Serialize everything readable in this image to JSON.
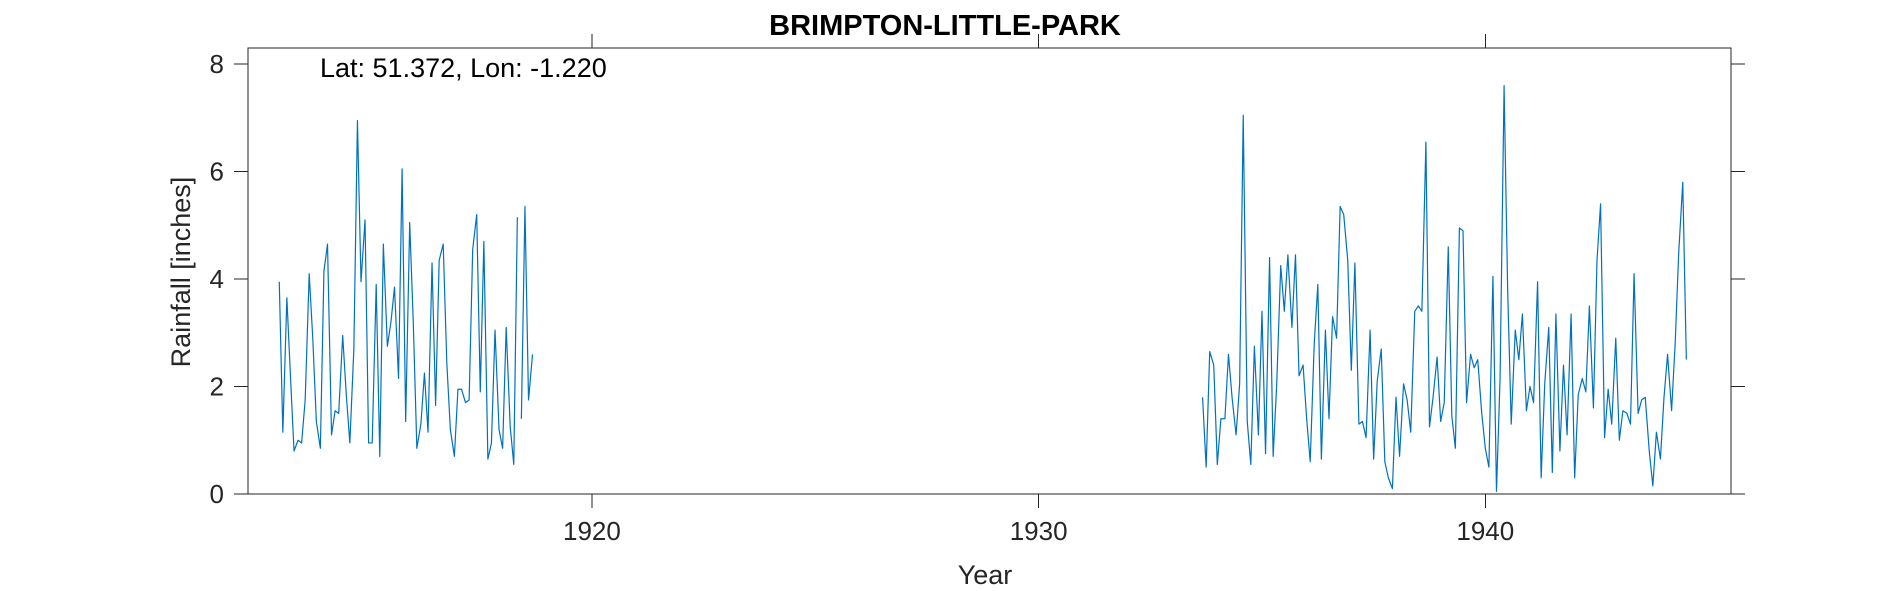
{
  "chart_data": {
    "type": "line",
    "title": "BRIMPTON-LITTLE-PARK",
    "xlabel": "Year",
    "ylabel": "Rainfall [inches]",
    "annotation": "Lat: 51.372, Lon: -1.220",
    "xlim": [
      1912.3,
      1945.5
    ],
    "ylim": [
      0,
      8.3
    ],
    "xticks": [
      1920,
      1930,
      1940
    ],
    "yticks": [
      0,
      2,
      4,
      6,
      8
    ],
    "grid": false,
    "series_color": "#0072BD",
    "series": [
      {
        "segment": "1913-1918",
        "x": [
          1913.0,
          1913.08,
          1913.17,
          1913.25,
          1913.33,
          1913.42,
          1913.5,
          1913.58,
          1913.67,
          1913.75,
          1913.83,
          1913.92,
          1914.0,
          1914.08,
          1914.17,
          1914.25,
          1914.33,
          1914.42,
          1914.5,
          1914.58,
          1914.67,
          1914.75,
          1914.83,
          1914.92,
          1915.0,
          1915.08,
          1915.17,
          1915.25,
          1915.33,
          1915.42,
          1915.5,
          1915.58,
          1915.67,
          1915.75,
          1915.83,
          1915.92,
          1916.0,
          1916.08,
          1916.17,
          1916.25,
          1916.33,
          1916.42,
          1916.5,
          1916.58,
          1916.67,
          1916.75,
          1916.83,
          1916.92,
          1917.0,
          1917.08,
          1917.17,
          1917.25,
          1917.33,
          1917.42,
          1917.5,
          1917.58,
          1917.67,
          1917.75,
          1917.83,
          1917.92,
          1918.0,
          1918.08,
          1918.17,
          1918.25,
          1918.33
        ],
        "y": [
          3.95,
          1.15,
          3.65,
          2.2,
          0.8,
          1.0,
          0.95,
          1.75,
          4.1,
          2.9,
          1.35,
          0.85,
          4.15,
          4.65,
          1.1,
          1.55,
          1.5,
          2.95,
          1.85,
          0.95,
          2.7,
          6.95,
          3.95,
          5.1,
          0.95,
          0.95,
          3.9,
          0.7,
          4.65,
          2.75,
          3.2,
          3.85,
          2.15,
          6.05,
          1.35,
          5.05,
          3.2,
          0.85,
          1.3,
          2.25,
          1.15,
          4.3,
          1.65,
          4.35,
          4.65,
          2.45,
          1.2,
          0.7,
          1.95,
          1.95,
          1.7,
          1.75,
          4.55,
          5.2,
          1.9,
          4.7,
          0.65,
          0.95,
          3.05,
          1.2,
          0.85,
          3.1,
          1.25,
          0.55,
          5.15
        ]
      },
      {
        "segment": "1918-tail",
        "x": [
          1918.42,
          1918.5,
          1918.58,
          1918.67
        ],
        "y": [
          1.4,
          5.35,
          1.75,
          2.6
        ]
      },
      {
        "segment": "1933-1944",
        "x": [
          1933.67,
          1933.75,
          1933.83,
          1933.92,
          1934.0,
          1934.08,
          1934.17,
          1934.25,
          1934.33,
          1934.42,
          1934.5,
          1934.58,
          1934.67,
          1934.75,
          1934.83,
          1934.92,
          1935.0,
          1935.08,
          1935.17,
          1935.25,
          1935.33,
          1935.42,
          1935.5,
          1935.58,
          1935.67,
          1935.75,
          1935.83,
          1935.92,
          1936.0,
          1936.08,
          1936.17,
          1936.25,
          1936.33,
          1936.42,
          1936.5,
          1936.58,
          1936.67,
          1936.75,
          1936.83,
          1936.92,
          1937.0,
          1937.08,
          1937.17,
          1937.25,
          1937.33,
          1937.42,
          1937.5,
          1937.58,
          1937.67,
          1937.75,
          1937.83,
          1937.92,
          1938.0,
          1938.08,
          1938.17,
          1938.25,
          1938.33,
          1938.42,
          1938.5,
          1938.58,
          1938.67,
          1938.75,
          1938.83,
          1938.92,
          1939.0,
          1939.08,
          1939.17,
          1939.25,
          1939.33,
          1939.42,
          1939.5,
          1939.58,
          1939.67,
          1939.75,
          1939.83,
          1939.92,
          1940.0,
          1940.08,
          1940.17,
          1940.25,
          1940.33,
          1940.42,
          1940.5,
          1940.58,
          1940.67,
          1940.75,
          1940.83,
          1940.92,
          1941.0,
          1941.08,
          1941.17,
          1941.25,
          1941.33,
          1941.42,
          1941.5,
          1941.58,
          1941.67,
          1941.75,
          1941.83,
          1941.92,
          1942.0,
          1942.08,
          1942.17,
          1942.25,
          1942.33,
          1942.42,
          1942.5,
          1942.58,
          1942.67,
          1942.75,
          1942.83,
          1942.92,
          1943.0,
          1943.08,
          1943.17,
          1943.25,
          1943.33,
          1943.42,
          1943.5,
          1943.58,
          1943.67,
          1943.75,
          1943.83,
          1943.92,
          1944.0,
          1944.08,
          1944.17,
          1944.25,
          1944.33,
          1944.42,
          1944.5
        ],
        "y": [
          1.8,
          0.5,
          2.65,
          2.4,
          0.55,
          1.4,
          1.4,
          2.6,
          1.8,
          1.1,
          2.05,
          7.05,
          1.35,
          0.55,
          2.75,
          1.1,
          3.4,
          0.75,
          4.4,
          0.7,
          2.05,
          4.25,
          3.4,
          4.45,
          3.1,
          4.45,
          2.2,
          2.4,
          1.4,
          0.6,
          2.8,
          3.9,
          0.65,
          3.05,
          1.4,
          3.3,
          2.9,
          5.35,
          5.2,
          4.35,
          2.3,
          4.3,
          1.3,
          1.35,
          1.05,
          3.05,
          0.65,
          2.1,
          2.7,
          0.6,
          0.3,
          0.1,
          1.8,
          0.7,
          2.05,
          1.75,
          1.15,
          3.4,
          3.5,
          3.4,
          6.55,
          1.25,
          1.8,
          2.55,
          1.35,
          1.7,
          4.6,
          1.45,
          0.85,
          4.95,
          4.9,
          1.7,
          2.6,
          2.35,
          2.5,
          1.5,
          0.85,
          0.5,
          4.05,
          0.05,
          2.15,
          7.6,
          3.8,
          1.3,
          3.05,
          2.5,
          3.35,
          1.55,
          2.0,
          1.7,
          3.95,
          0.3,
          2.05,
          3.1,
          0.4,
          3.35,
          0.8,
          2.4,
          1.1,
          3.35,
          0.3,
          1.85,
          2.15,
          1.9,
          3.5,
          1.6,
          4.35,
          5.4,
          1.05,
          1.95,
          1.3,
          2.9,
          1.0,
          1.55,
          1.5,
          1.3,
          4.1,
          1.5,
          1.75,
          1.8,
          0.8,
          0.15,
          1.15,
          0.65,
          1.8,
          2.6,
          1.55,
          2.8,
          4.5,
          5.8,
          2.5
        ]
      }
    ]
  }
}
